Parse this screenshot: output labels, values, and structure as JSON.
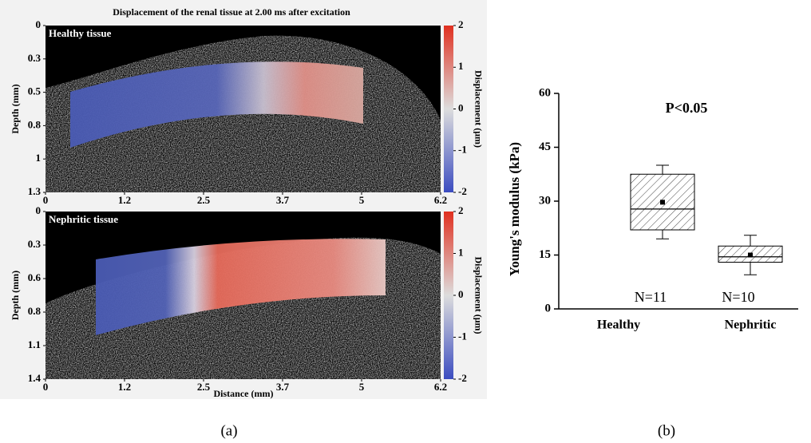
{
  "chart_data": [
    {
      "type": "image",
      "title": "Displacement of the renal tissue at 2.00 ms after excitation",
      "label": "Healthy tissue",
      "ylabel": "Depth (mm)",
      "xlim": [
        0,
        6.2
      ],
      "xticks": [
        0,
        {
          "value": 1.24,
          "label": "1.2"
        },
        {
          "value": 2.48,
          "label": "2.5"
        },
        {
          "value": 3.72,
          "label": "3.7"
        },
        {
          "value": 4.96,
          "label": "5"
        },
        6.2
      ],
      "ylim": [
        0,
        1.3
      ],
      "yticks": [
        0,
        {
          "value": 0.26,
          "label": "0.3"
        },
        {
          "value": 0.52,
          "label": "0.5"
        },
        {
          "value": 0.78,
          "label": "0.8"
        },
        {
          "value": 1.04,
          "label": "1"
        },
        1.3
      ],
      "colorbar": {
        "label": "Displacement (μm)",
        "lim": [
          -2,
          2
        ],
        "ticks": [
          -2,
          -1,
          0,
          1,
          2
        ]
      }
    },
    {
      "type": "image",
      "label": "Nephritic tissue",
      "ylabel": "Depth (mm)",
      "xlabel": "Distance (mm)",
      "xlim": [
        0,
        6.2
      ],
      "xticks": [
        0,
        {
          "value": 1.24,
          "label": "1.2"
        },
        {
          "value": 2.48,
          "label": "2.5"
        },
        {
          "value": 3.72,
          "label": "3.7"
        },
        {
          "value": 4.96,
          "label": "5"
        },
        6.2
      ],
      "ylim": [
        0,
        1.4
      ],
      "yticks": [
        0,
        {
          "value": 0.28,
          "label": "0.3"
        },
        {
          "value": 0.56,
          "label": "0.6"
        },
        {
          "value": 0.84,
          "label": "0.8"
        },
        {
          "value": 1.12,
          "label": "1.1"
        },
        1.4
      ],
      "colorbar": {
        "label": "Displacement (μm)",
        "lim": [
          -2,
          2
        ],
        "ticks": [
          -2,
          -1,
          0,
          1,
          2
        ]
      }
    },
    {
      "type": "box",
      "ylabel": "Young's modulus (kPa)",
      "annotation": "P<0.05",
      "categories": [
        "Healthy",
        "Nephritic"
      ],
      "n_labels": [
        "N=11",
        "N=10"
      ],
      "whisker_low": [
        19.5,
        9.5
      ],
      "q1": [
        22,
        13
      ],
      "median": [
        27.8,
        14.5
      ],
      "q3": [
        37.5,
        17.5
      ],
      "whisker_high": [
        40,
        20.5
      ],
      "mean": [
        29.7,
        15
      ],
      "ylim": [
        0,
        60
      ],
      "yticks": [
        0,
        15,
        30,
        45,
        60
      ]
    }
  ],
  "panel_labels": [
    "(a)",
    "(b)"
  ]
}
